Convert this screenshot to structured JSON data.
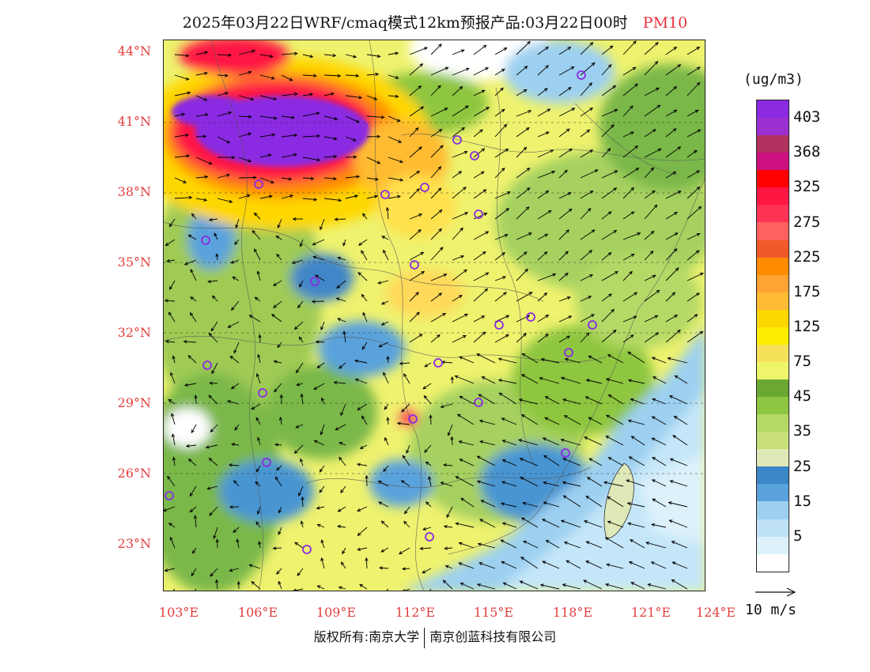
{
  "title": {
    "main": "2025年03月22日WRF/cmaq模式12km预报产品:03月22日00时",
    "variable": "PM10"
  },
  "map": {
    "lat_labels": [
      "44°N",
      "41°N",
      "38°N",
      "35°N",
      "32°N",
      "29°N",
      "26°N",
      "23°N"
    ],
    "lon_labels": [
      "103°E",
      "106°E",
      "109°E",
      "112°E",
      "115°E",
      "118°E",
      "121°E",
      "124°E"
    ],
    "station_marker_color": "#8a2be2",
    "wind_arrow_color": "#000000"
  },
  "legend": {
    "unit": "(ug/m3)",
    "colors": [
      "#8a2be2",
      "#9b30d0",
      "#b03060",
      "#cc1080",
      "#ff0000",
      "#ff1744",
      "#ff3355",
      "#ff6060",
      "#f05a28",
      "#ff8c00",
      "#ffa333",
      "#ffbb33",
      "#ffd700",
      "#ffee00",
      "#f5e25a",
      "#eef56a",
      "#6aa832",
      "#8ec641",
      "#b5d966",
      "#c9e07a",
      "#dfe9b8",
      "#3a86c7",
      "#5aa2dc",
      "#9dd0f0",
      "#bfe2f7",
      "#ddf1fb",
      "#ffffff"
    ],
    "ticks": [
      "403",
      "368",
      "325",
      "275",
      "225",
      "175",
      "125",
      "75",
      "45",
      "35",
      "25",
      "15",
      "5"
    ]
  },
  "wind_reference": {
    "label": "10 m/s"
  },
  "footer": {
    "left": "版权所有:南京大学",
    "right": "南京创蓝科技有限公司"
  }
}
